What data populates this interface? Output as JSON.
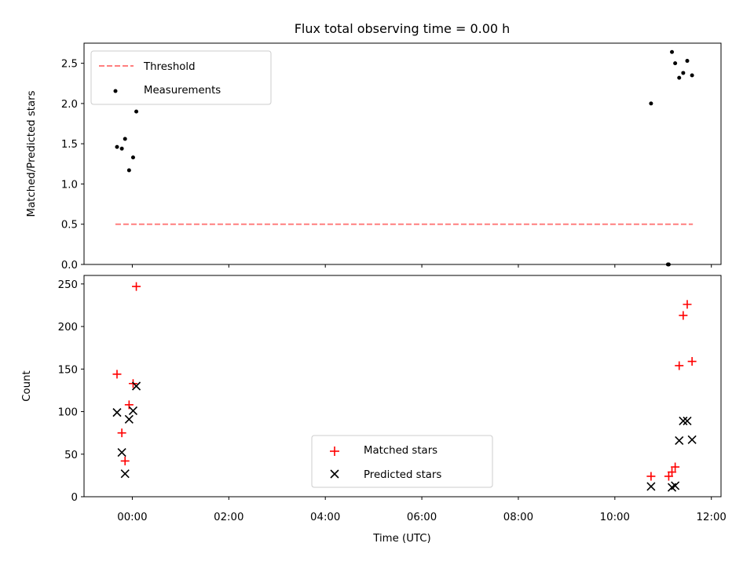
{
  "chart_data": [
    {
      "type": "scatter",
      "title": "Flux total observing time = 0.00 h",
      "xlabel": "",
      "ylabel": "Matched/Predicted stars",
      "xlim": [
        "23:00",
        "12:12"
      ],
      "ylim": [
        0,
        2.75
      ],
      "yticks": [
        "0.0",
        "0.5",
        "1.0",
        "1.5",
        "2.0",
        "2.5"
      ],
      "grid": false,
      "legend_position": "upper left",
      "series": [
        {
          "name": "Threshold",
          "style": "dashed-line",
          "color": "#ff7f7f",
          "x": [
            "23:39",
            "11:37"
          ],
          "y": [
            0.5,
            0.5
          ]
        },
        {
          "name": "Measurements",
          "style": "dot",
          "color": "#000000",
          "x": [
            "23:41",
            "23:47",
            "23:51",
            "23:56",
            "00:01",
            "00:05",
            "10:45",
            "11:06",
            "11:07",
            "11:11",
            "11:15",
            "11:20",
            "11:25",
            "11:30",
            "11:36"
          ],
          "y": [
            1.46,
            1.44,
            1.56,
            1.17,
            1.33,
            1.9,
            2.0,
            0.0,
            0.0,
            2.64,
            2.5,
            2.32,
            2.38,
            2.53,
            2.35
          ]
        }
      ]
    },
    {
      "type": "scatter",
      "title": "",
      "xlabel": "Time (UTC)",
      "ylabel": "Count",
      "xlim": [
        "23:00",
        "12:12"
      ],
      "ylim": [
        0,
        260
      ],
      "xticks": [
        "00:00",
        "02:00",
        "04:00",
        "06:00",
        "08:00",
        "10:00",
        "12:00"
      ],
      "yticks": [
        "0",
        "50",
        "100",
        "150",
        "200",
        "250"
      ],
      "grid": false,
      "legend_position": "lower center",
      "series": [
        {
          "name": "Matched stars",
          "marker": "plus",
          "color": "#ff0000",
          "x": [
            "23:41",
            "23:47",
            "23:51",
            "23:56",
            "00:01",
            "00:05",
            "10:45",
            "11:07",
            "11:11",
            "11:15",
            "11:20",
            "11:25",
            "11:30",
            "11:36"
          ],
          "y": [
            144,
            75,
            42,
            108,
            133,
            247,
            24,
            24,
            29,
            35,
            154,
            213,
            226,
            159
          ]
        },
        {
          "name": "Predicted stars",
          "marker": "x",
          "color": "#000000",
          "x": [
            "23:41",
            "23:47",
            "23:51",
            "23:56",
            "00:01",
            "00:05",
            "10:45",
            "11:11",
            "11:15",
            "11:20",
            "11:25",
            "11:30",
            "11:36"
          ],
          "y": [
            99,
            52,
            27,
            91,
            101,
            130,
            12,
            11,
            13,
            66,
            89,
            89,
            67
          ]
        }
      ]
    }
  ]
}
